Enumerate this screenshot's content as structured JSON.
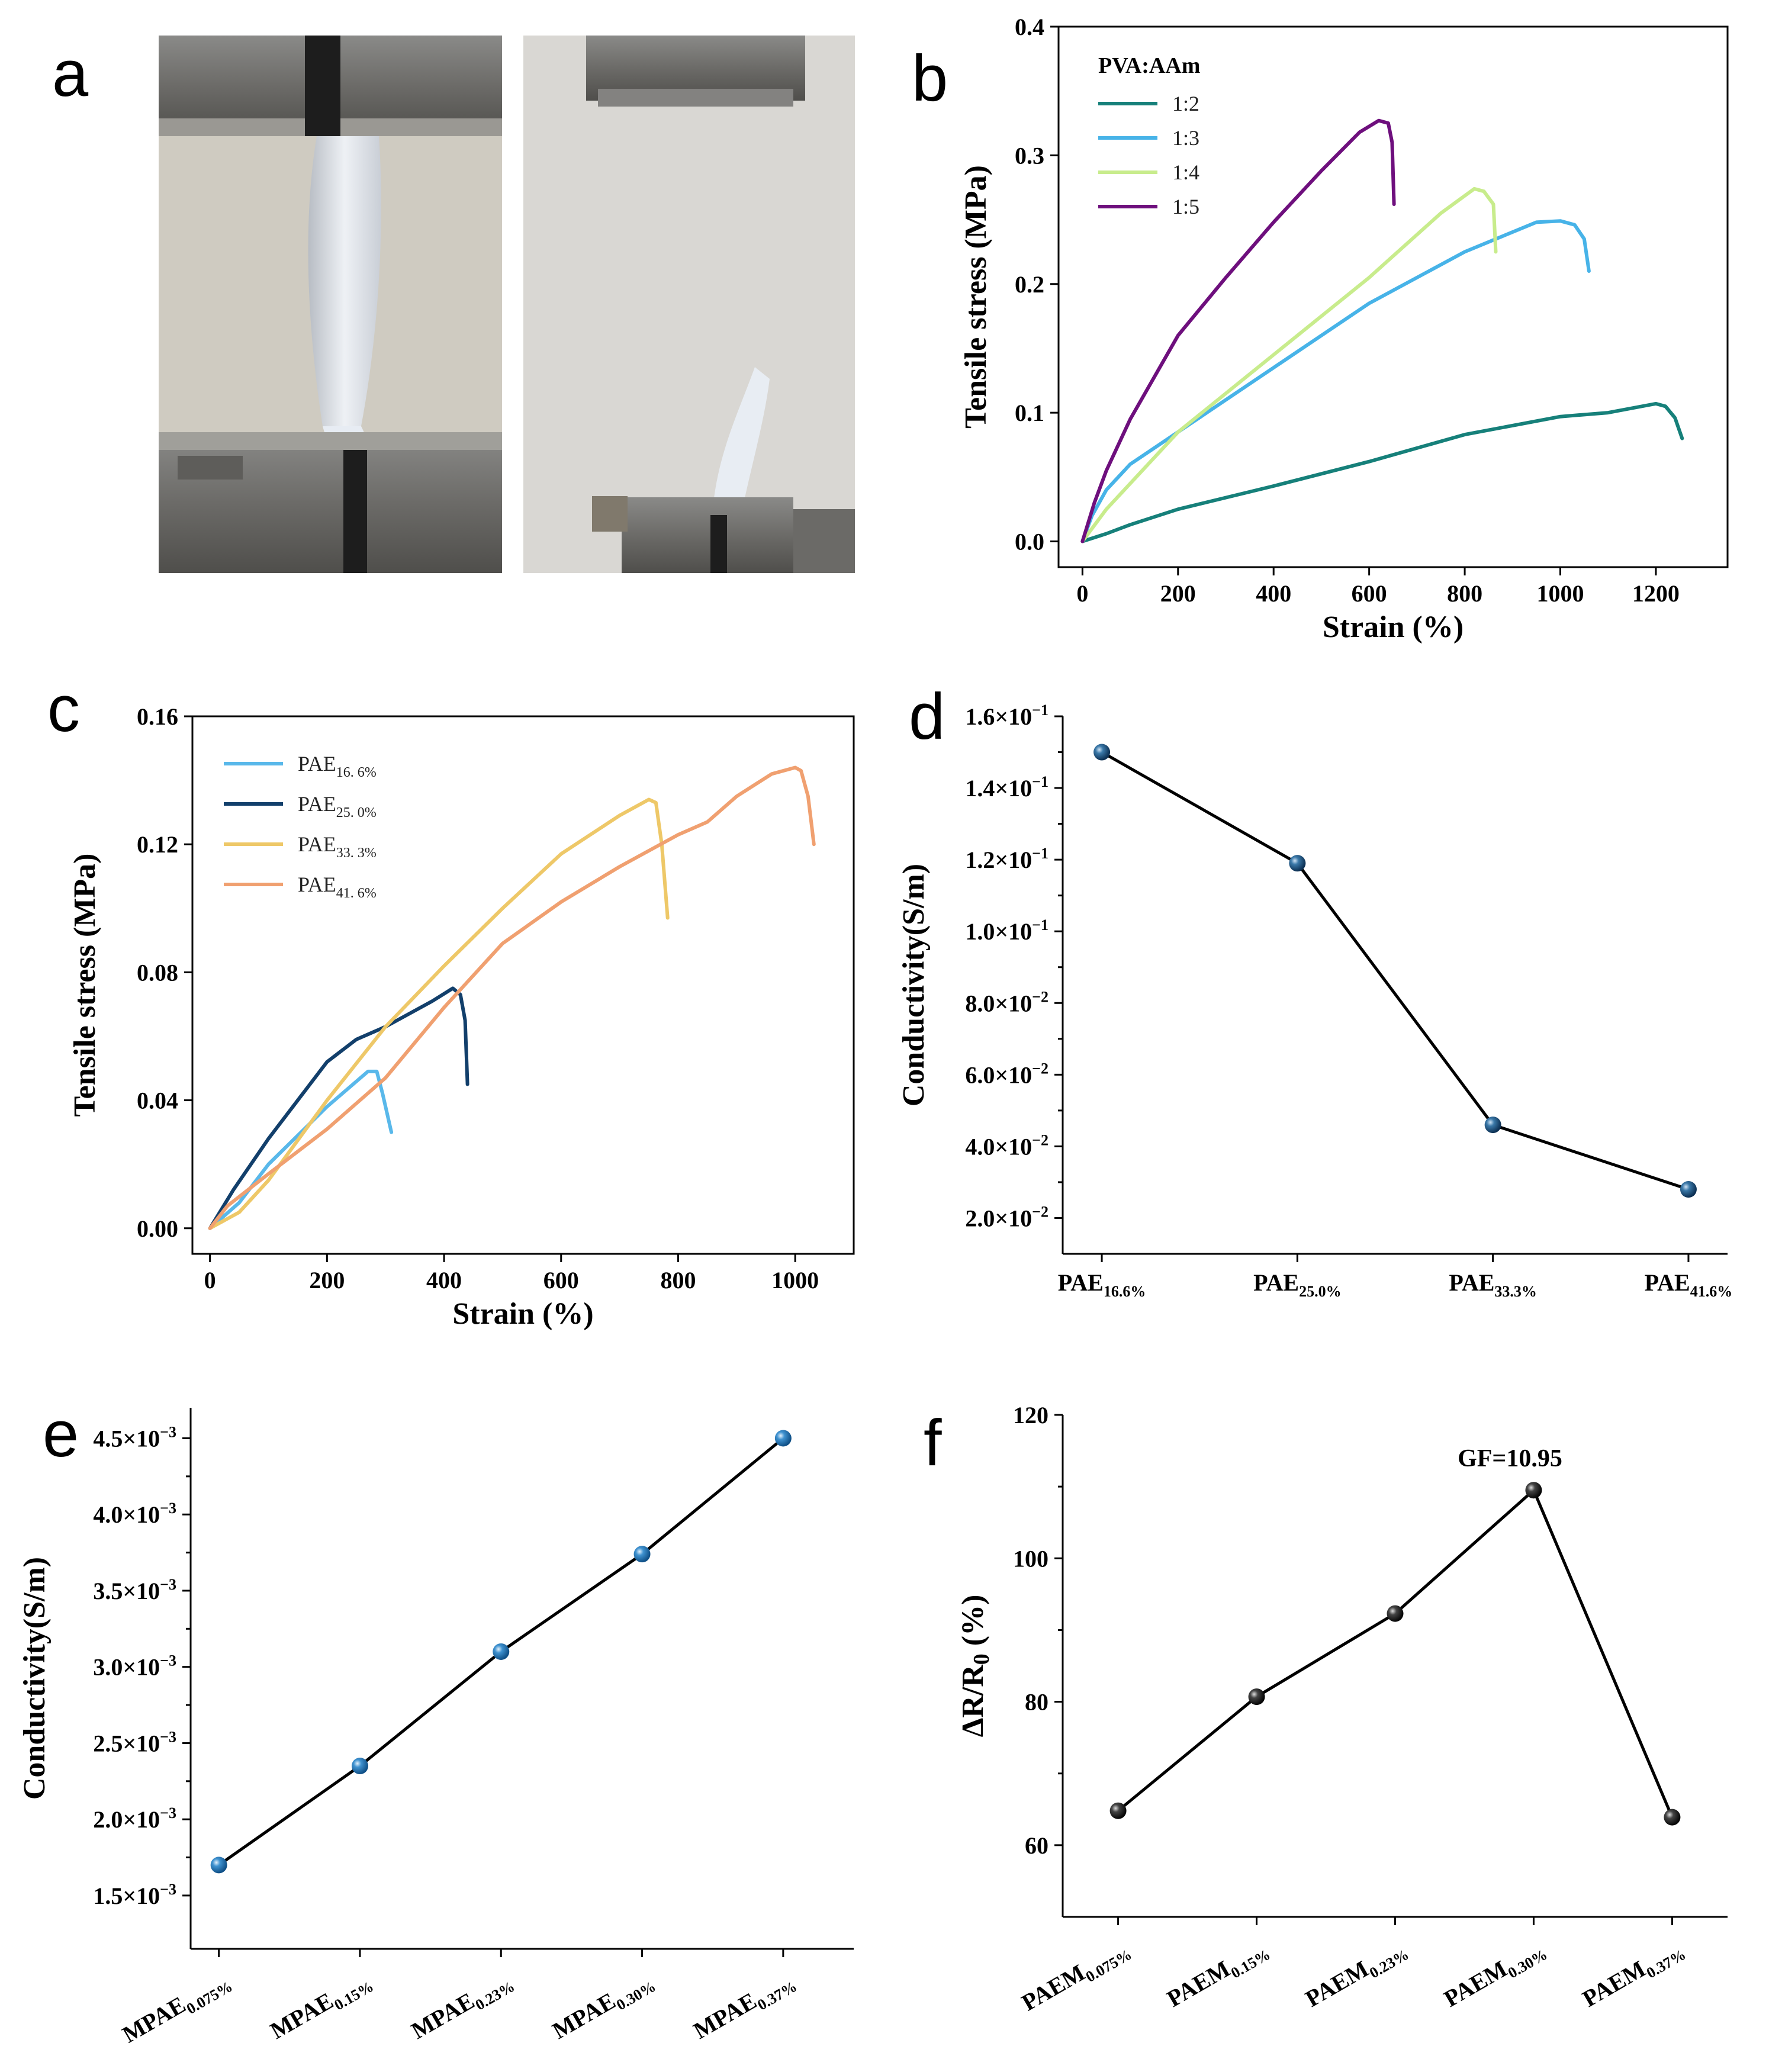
{
  "panels": {
    "a": {
      "label": "a",
      "photo_left_desc": "",
      "photo_right_desc": ""
    },
    "b": {
      "label": "b"
    },
    "c": {
      "label": "c"
    },
    "d": {
      "label": "d"
    },
    "e": {
      "label": "e"
    },
    "f": {
      "label": "f"
    }
  },
  "chart_data": [
    {
      "id": "b",
      "type": "line",
      "xlabel": "Strain (%)",
      "ylabel": "Tensile stress (MPa)",
      "xlim": [
        -50,
        1350
      ],
      "ylim": [
        -0.02,
        0.4
      ],
      "xticks": [
        0,
        200,
        400,
        600,
        800,
        1000,
        1200
      ],
      "xtick_labels": [
        "0",
        "200",
        "400",
        "600",
        "800",
        "1000",
        "1200"
      ],
      "yticks": [
        0.0,
        0.1,
        0.2,
        0.3,
        0.4
      ],
      "ytick_labels": [
        "0.0",
        "0.1",
        "0.2",
        "0.3",
        "0.4"
      ],
      "legend_title": "PVA:AAm",
      "legend_position": "top-left",
      "series": [
        {
          "name": "1:2",
          "color": "#16807a",
          "points": [
            [
              0,
              0
            ],
            [
              50,
              0.006
            ],
            [
              100,
              0.013
            ],
            [
              200,
              0.025
            ],
            [
              400,
              0.043
            ],
            [
              600,
              0.062
            ],
            [
              800,
              0.083
            ],
            [
              1000,
              0.097
            ],
            [
              1100,
              0.1
            ],
            [
              1200,
              0.107
            ],
            [
              1220,
              0.105
            ],
            [
              1240,
              0.096
            ],
            [
              1255,
              0.08
            ]
          ]
        },
        {
          "name": "1:3",
          "color": "#47b3e8",
          "points": [
            [
              0,
              0
            ],
            [
              20,
              0.02
            ],
            [
              50,
              0.04
            ],
            [
              100,
              0.06
            ],
            [
              200,
              0.085
            ],
            [
              400,
              0.135
            ],
            [
              600,
              0.185
            ],
            [
              800,
              0.225
            ],
            [
              950,
              0.248
            ],
            [
              1000,
              0.249
            ],
            [
              1030,
              0.246
            ],
            [
              1050,
              0.235
            ],
            [
              1060,
              0.21
            ]
          ]
        },
        {
          "name": "1:4",
          "color": "#c8ec8c",
          "points": [
            [
              0,
              0
            ],
            [
              50,
              0.025
            ],
            [
              100,
              0.045
            ],
            [
              200,
              0.085
            ],
            [
              400,
              0.145
            ],
            [
              600,
              0.205
            ],
            [
              750,
              0.255
            ],
            [
              820,
              0.274
            ],
            [
              840,
              0.272
            ],
            [
              860,
              0.262
            ],
            [
              865,
              0.225
            ]
          ]
        },
        {
          "name": "1:5",
          "color": "#6e0f7d",
          "points": [
            [
              0,
              0
            ],
            [
              25,
              0.03
            ],
            [
              50,
              0.055
            ],
            [
              100,
              0.095
            ],
            [
              200,
              0.16
            ],
            [
              300,
              0.205
            ],
            [
              400,
              0.248
            ],
            [
              500,
              0.288
            ],
            [
              580,
              0.318
            ],
            [
              620,
              0.327
            ],
            [
              640,
              0.325
            ],
            [
              648,
              0.31
            ],
            [
              652,
              0.262
            ]
          ]
        }
      ]
    },
    {
      "id": "c",
      "type": "line",
      "xlabel": "Strain (%)",
      "ylabel": "Tensile stress (MPa)",
      "xlim": [
        -30,
        1100
      ],
      "ylim": [
        -0.008,
        0.16
      ],
      "xticks": [
        0,
        200,
        400,
        600,
        800,
        1000
      ],
      "xtick_labels": [
        "0",
        "200",
        "400",
        "600",
        "800",
        "1000"
      ],
      "yticks": [
        0.0,
        0.04,
        0.08,
        0.12,
        0.16
      ],
      "ytick_labels": [
        "0.00",
        "0.04",
        "0.08",
        "0.12",
        "0.16"
      ],
      "legend_position": "top-left",
      "series": [
        {
          "name": "PAE",
          "sub": "16. 6%",
          "color": "#59b8ea",
          "points": [
            [
              0,
              0
            ],
            [
              50,
              0.008
            ],
            [
              100,
              0.02
            ],
            [
              200,
              0.038
            ],
            [
              270,
              0.049
            ],
            [
              285,
              0.049
            ],
            [
              295,
              0.042
            ],
            [
              310,
              0.03
            ]
          ]
        },
        {
          "name": "PAE",
          "sub": "25. 0%",
          "color": "#123f6b",
          "points": [
            [
              0,
              0
            ],
            [
              40,
              0.012
            ],
            [
              100,
              0.028
            ],
            [
              200,
              0.052
            ],
            [
              250,
              0.059
            ],
            [
              300,
              0.063
            ],
            [
              380,
              0.071
            ],
            [
              415,
              0.075
            ],
            [
              428,
              0.073
            ],
            [
              436,
              0.065
            ],
            [
              440,
              0.045
            ]
          ]
        },
        {
          "name": "PAE",
          "sub": "33. 3%",
          "color": "#eec868",
          "points": [
            [
              0,
              0
            ],
            [
              50,
              0.005
            ],
            [
              100,
              0.015
            ],
            [
              200,
              0.04
            ],
            [
              300,
              0.063
            ],
            [
              400,
              0.082
            ],
            [
              500,
              0.1
            ],
            [
              600,
              0.117
            ],
            [
              700,
              0.129
            ],
            [
              750,
              0.134
            ],
            [
              762,
              0.133
            ],
            [
              772,
              0.12
            ],
            [
              782,
              0.097
            ]
          ]
        },
        {
          "name": "PAE",
          "sub": "41. 6%",
          "color": "#f0a070",
          "points": [
            [
              0,
              0
            ],
            [
              30,
              0.007
            ],
            [
              100,
              0.017
            ],
            [
              200,
              0.031
            ],
            [
              300,
              0.047
            ],
            [
              400,
              0.069
            ],
            [
              500,
              0.089
            ],
            [
              600,
              0.102
            ],
            [
              700,
              0.113
            ],
            [
              800,
              0.123
            ],
            [
              850,
              0.127
            ],
            [
              900,
              0.135
            ],
            [
              960,
              0.142
            ],
            [
              1000,
              0.144
            ],
            [
              1010,
              0.143
            ],
            [
              1022,
              0.135
            ],
            [
              1032,
              0.12
            ]
          ]
        }
      ]
    },
    {
      "id": "d",
      "type": "line",
      "ylabel": "Conductivity(S/m)",
      "xlim": [
        -0.2,
        3.2
      ],
      "ylim": [
        0.01,
        0.16
      ],
      "categories": [
        "PAE",
        "PAE",
        "PAE",
        "PAE"
      ],
      "category_subs": [
        "16.6%",
        "25.0%",
        "33.3%",
        "41.6%"
      ],
      "values": [
        0.15,
        0.119,
        0.046,
        0.028
      ],
      "yticks": [
        0.02,
        0.04,
        0.06,
        0.08,
        0.1,
        0.12,
        0.14,
        0.16
      ],
      "ytick_labels": [
        [
          "2.0×10",
          "−2"
        ],
        [
          "4.0×10",
          "−2"
        ],
        [
          "6.0×10",
          "−2"
        ],
        [
          "8.0×10",
          "−2"
        ],
        [
          "1.0×10",
          "−1"
        ],
        [
          "1.2×10",
          "−1"
        ],
        [
          "1.4×10",
          "−1"
        ],
        [
          "1.6×10",
          "−1"
        ]
      ],
      "marker_color": "#1e5a8c"
    },
    {
      "id": "e",
      "type": "line",
      "ylabel": "Conductivity(S/m)",
      "xlim": [
        -0.2,
        4.5
      ],
      "ylim": [
        0.00115,
        0.0047
      ],
      "categories": [
        "MPAE",
        "MPAE",
        "MPAE",
        "MPAE",
        "MPAE"
      ],
      "category_subs": [
        "0.075%",
        "0.15%",
        "0.23%",
        "0.30%",
        "0.37%"
      ],
      "values": [
        0.0017,
        0.00235,
        0.0031,
        0.00374,
        0.0045
      ],
      "yticks": [
        0.0015,
        0.002,
        0.0025,
        0.003,
        0.0035,
        0.004,
        0.0045
      ],
      "ytick_labels": [
        [
          "1.5×10",
          "−3"
        ],
        [
          "2.0×10",
          "−3"
        ],
        [
          "2.5×10",
          "−3"
        ],
        [
          "3.0×10",
          "−3"
        ],
        [
          "3.5×10",
          "−3"
        ],
        [
          "4.0×10",
          "−3"
        ],
        [
          "4.5×10",
          "−3"
        ]
      ],
      "marker_color": "#2576b8"
    },
    {
      "id": "f",
      "type": "line",
      "ylabel": "ΔR/R",
      "ylabel_sub": "0",
      "ylabel_unit": " (%)",
      "xlim": [
        -0.4,
        4.4
      ],
      "ylim": [
        50,
        120
      ],
      "categories": [
        "PAEM",
        "PAEM",
        "PAEM",
        "PAEM",
        "PAEM"
      ],
      "category_subs": [
        "0.075%",
        "0.15%",
        "0.23%",
        "0.30%",
        "0.37%"
      ],
      "values": [
        64.8,
        80.7,
        92.3,
        109.5,
        63.9
      ],
      "yticks": [
        60,
        80,
        100,
        120
      ],
      "ytick_labels": [
        "60",
        "80",
        "100",
        "120"
      ],
      "annotation": "GF=10.95",
      "marker_color": "#222222"
    }
  ]
}
